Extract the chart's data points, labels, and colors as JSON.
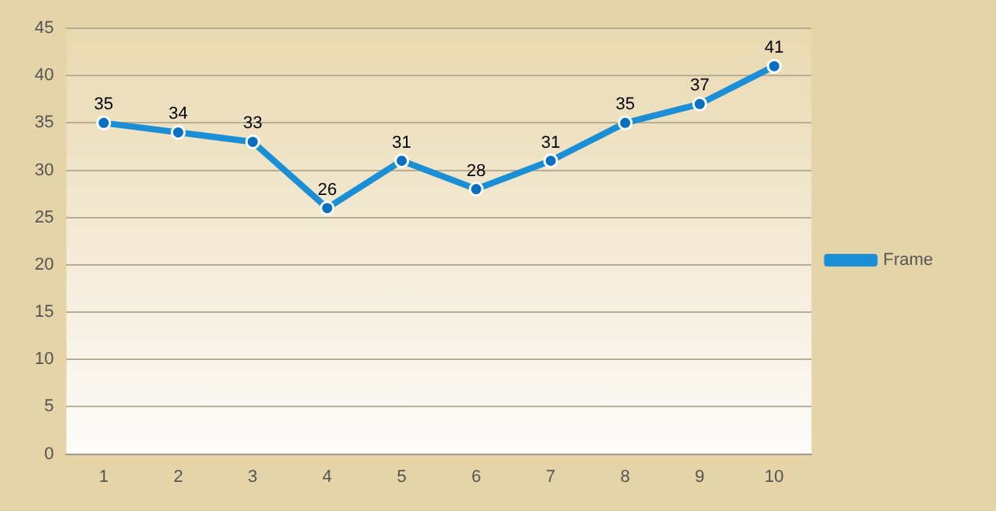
{
  "chart_data": {
    "type": "line",
    "categories": [
      "1",
      "2",
      "3",
      "4",
      "5",
      "6",
      "7",
      "8",
      "9",
      "10"
    ],
    "series": [
      {
        "name": "Frame",
        "color": "#1b8fd6",
        "values": [
          35,
          34,
          33,
          26,
          31,
          28,
          31,
          35,
          37,
          41
        ]
      }
    ],
    "ylim": [
      0,
      45
    ],
    "yticks": [
      0,
      5,
      10,
      15,
      20,
      25,
      30,
      35,
      40,
      45
    ],
    "grid": "y",
    "legend": "right",
    "marker": "circle",
    "line_style": "solid",
    "data_labels": true
  }
}
